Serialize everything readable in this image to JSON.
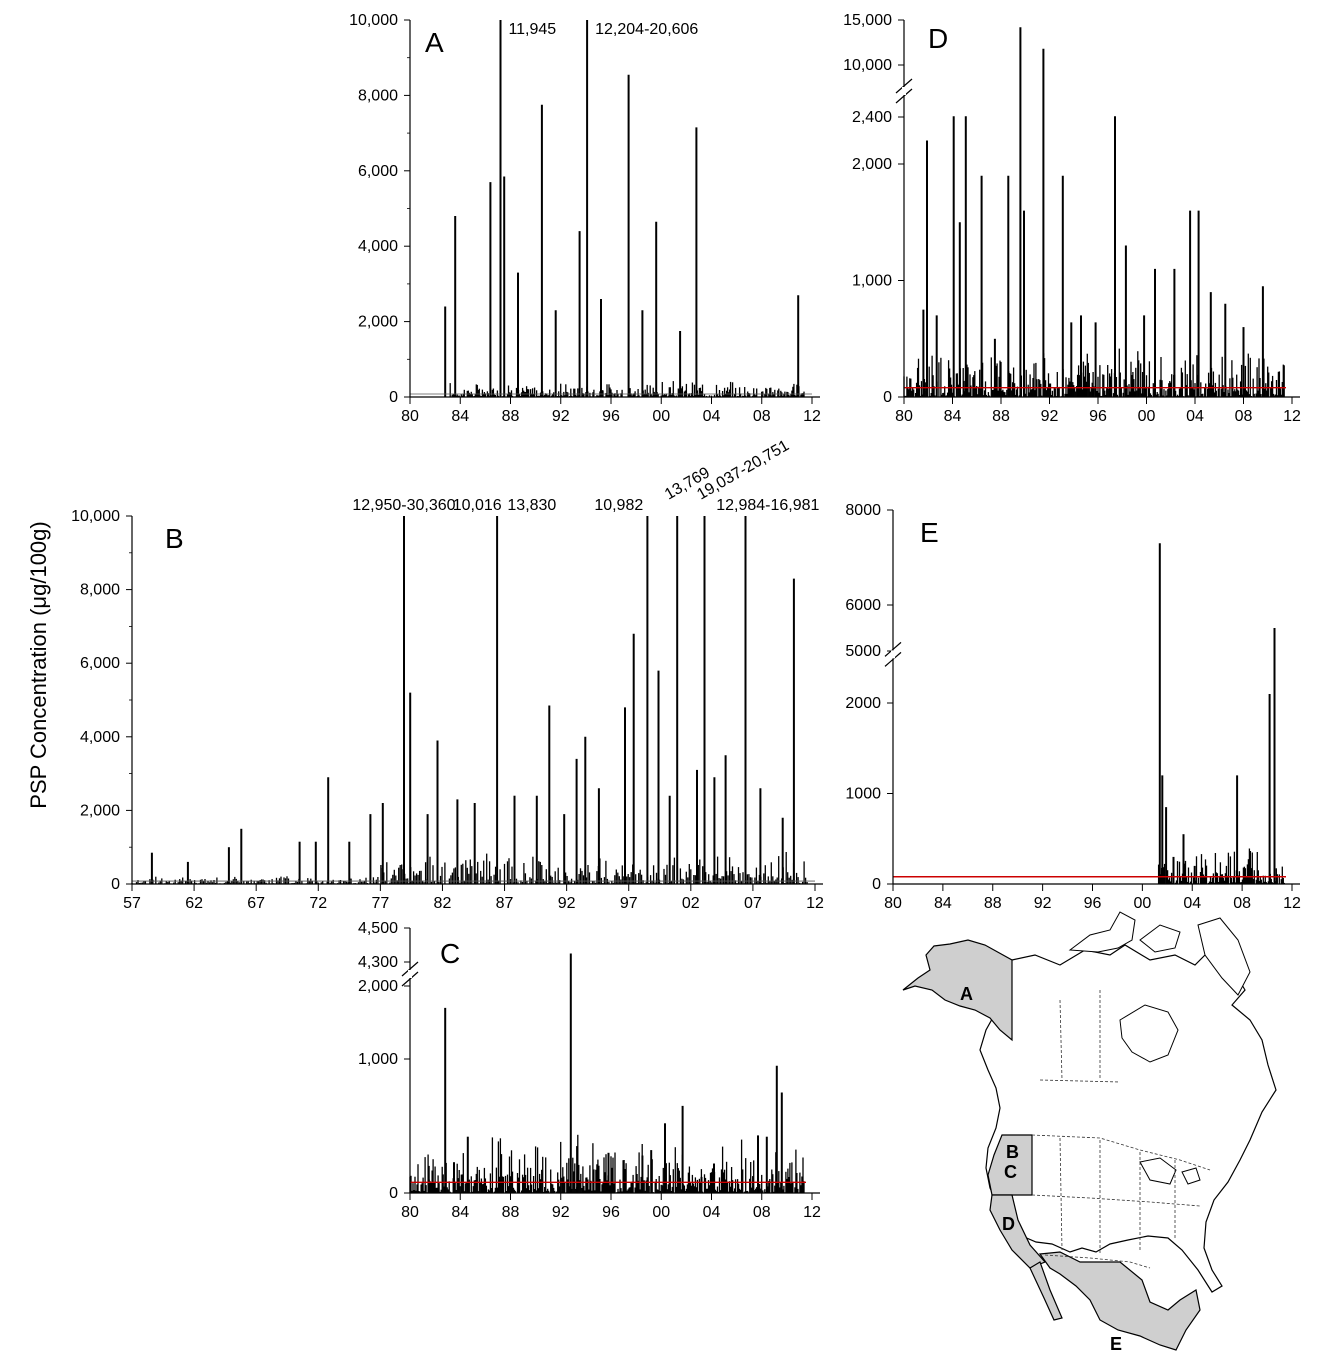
{
  "figure": {
    "ylabel": "PSP Concentration (μg/100g)",
    "threshold_color": "#cc0000",
    "map_region_color": "#cfcfcf"
  },
  "chart_data": [
    {
      "id": "A",
      "type": "bar",
      "panel_label": "A",
      "x_ticks": [
        "80",
        "84",
        "88",
        "92",
        "96",
        "00",
        "04",
        "08",
        "12"
      ],
      "y_ticks": [
        "0",
        "2,000",
        "4,000",
        "6,000",
        "8,000",
        "10,000"
      ],
      "x_range": [
        1980,
        2012
      ],
      "y_range": [
        0,
        10000
      ],
      "threshold": 80,
      "peaks": [
        [
          1982.8,
          2400
        ],
        [
          1983.6,
          4800
        ],
        [
          1986.4,
          5700
        ],
        [
          1987.2,
          10000
        ],
        [
          1987.5,
          5850
        ],
        [
          1988.6,
          3300
        ],
        [
          1990.5,
          7750
        ],
        [
          1991.6,
          2300
        ],
        [
          1993.5,
          4400
        ],
        [
          1994.1,
          10000
        ],
        [
          1995.2,
          2600
        ],
        [
          1997.4,
          8550
        ],
        [
          1998.5,
          2300
        ],
        [
          1999.6,
          4650
        ],
        [
          2001.5,
          1750
        ],
        [
          2002.8,
          7150
        ],
        [
          2010.9,
          2700
        ]
      ],
      "annotations": [
        {
          "x": 1987.2,
          "text": "11,945"
        },
        {
          "x": 1994.1,
          "text": "12,204-20,606"
        }
      ]
    },
    {
      "id": "B",
      "type": "bar",
      "panel_label": "B",
      "x_ticks": [
        "57",
        "62",
        "67",
        "72",
        "77",
        "82",
        "87",
        "92",
        "97",
        "02",
        "07",
        "12"
      ],
      "y_ticks": [
        "0",
        "2,000",
        "4,000",
        "6,000",
        "8,000",
        "10,000"
      ],
      "x_range": [
        1957,
        2012
      ],
      "y_range": [
        0,
        10000
      ],
      "threshold": 80,
      "peaks": [
        [
          1958.6,
          850
        ],
        [
          1961.5,
          600
        ],
        [
          1964.8,
          1000
        ],
        [
          1965.8,
          1500
        ],
        [
          1970.5,
          1150
        ],
        [
          1971.8,
          1150
        ],
        [
          1972.8,
          2900
        ],
        [
          1974.5,
          1150
        ],
        [
          1976.2,
          1900
        ],
        [
          1977.2,
          2200
        ],
        [
          1978.9,
          10000
        ],
        [
          1979.4,
          5200
        ],
        [
          1980.8,
          1900
        ],
        [
          1981.6,
          3900
        ],
        [
          1983.2,
          2300
        ],
        [
          1984.6,
          2200
        ],
        [
          1986.4,
          10000
        ],
        [
          1987.8,
          2400
        ],
        [
          1989.6,
          2400
        ],
        [
          1990.6,
          4850
        ],
        [
          1991.8,
          1900
        ],
        [
          1992.8,
          3400
        ],
        [
          1993.5,
          4000
        ],
        [
          1994.6,
          2600
        ],
        [
          1996.7,
          4800
        ],
        [
          1997.4,
          6800
        ],
        [
          1998.5,
          10000
        ],
        [
          1999.4,
          5800
        ],
        [
          2000.3,
          2400
        ],
        [
          2000.9,
          10000
        ],
        [
          2002.5,
          3100
        ],
        [
          2003.1,
          10000
        ],
        [
          2003.9,
          2900
        ],
        [
          2004.8,
          3500
        ],
        [
          2006.4,
          10000
        ],
        [
          2007.6,
          2600
        ],
        [
          2009.4,
          1800
        ],
        [
          2010.3,
          8300
        ]
      ],
      "annotations": [
        {
          "x": 1978.9,
          "text": "12,950-30,360"
        },
        {
          "x": 1984.8,
          "text": "10,016"
        },
        {
          "x": 1989.2,
          "text": "13,830"
        },
        {
          "x": 1996.2,
          "text": "10,982"
        },
        {
          "x": 2000.2,
          "text": "13,769",
          "rotated": true
        },
        {
          "x": 2002.8,
          "text": "19,037-20,751",
          "rotated": true
        },
        {
          "x": 2008.2,
          "text": "12,984-16,981"
        }
      ]
    },
    {
      "id": "C",
      "type": "bar",
      "panel_label": "C",
      "x_ticks": [
        "80",
        "84",
        "88",
        "92",
        "96",
        "00",
        "04",
        "08",
        "12"
      ],
      "y_ticks": [
        "0",
        "1,000",
        "2,000",
        "4,300",
        "4,500"
      ],
      "x_range": [
        1980,
        2012
      ],
      "y_range": [
        0,
        4500
      ],
      "axis_break": {
        "lower_max": 2000,
        "upper_min": 4300
      },
      "threshold": 80,
      "peaks": [
        [
          1981.5,
          100
        ],
        [
          1982.8,
          1700
        ],
        [
          1983.5,
          230
        ],
        [
          1984.6,
          420
        ],
        [
          1992.8,
          4350
        ],
        [
          1993.3,
          350
        ],
        [
          1995.8,
          300
        ],
        [
          1998.5,
          280
        ],
        [
          1999.2,
          320
        ],
        [
          2000.3,
          520
        ],
        [
          2001.7,
          650
        ],
        [
          2003.2,
          120
        ],
        [
          2004.2,
          220
        ],
        [
          2007.7,
          430
        ],
        [
          2008.4,
          420
        ],
        [
          2009.2,
          950
        ],
        [
          2009.6,
          750
        ]
      ]
    },
    {
      "id": "D",
      "type": "bar",
      "panel_label": "D",
      "x_ticks": [
        "80",
        "84",
        "88",
        "92",
        "96",
        "00",
        "04",
        "08",
        "12"
      ],
      "y_ticks": [
        "0",
        "1,000",
        "2,000",
        "2,400",
        "10,000",
        "15,000"
      ],
      "x_range": [
        1980,
        2012
      ],
      "y_range": [
        0,
        15000
      ],
      "axis_break": {
        "lower_max": 2400,
        "upper_min": 10000
      },
      "threshold": 80,
      "peaks": [
        [
          1981.6,
          750
        ],
        [
          1981.9,
          2200
        ],
        [
          1982.7,
          700
        ],
        [
          1984.1,
          2500
        ],
        [
          1984.6,
          1500
        ],
        [
          1985.1,
          2500
        ],
        [
          1986.4,
          1900
        ],
        [
          1987.5,
          500
        ],
        [
          1988.6,
          1900
        ],
        [
          1989.6,
          14200
        ],
        [
          1989.9,
          1600
        ],
        [
          1991.5,
          11800
        ],
        [
          1993.1,
          1900
        ],
        [
          1993.8,
          640
        ],
        [
          1994.6,
          700
        ],
        [
          1995.8,
          640
        ],
        [
          1997.4,
          2500
        ],
        [
          1998.3,
          1300
        ],
        [
          1999.8,
          700
        ],
        [
          2000.7,
          1100
        ],
        [
          2002.3,
          1100
        ],
        [
          2003.6,
          1600
        ],
        [
          2004.3,
          1600
        ],
        [
          2005.3,
          900
        ],
        [
          2006.5,
          800
        ],
        [
          2008.0,
          600
        ],
        [
          2009.6,
          950
        ]
      ]
    },
    {
      "id": "E",
      "type": "bar",
      "panel_label": "E",
      "x_ticks": [
        "80",
        "84",
        "88",
        "92",
        "96",
        "00",
        "04",
        "08",
        "12"
      ],
      "y_ticks": [
        "0",
        "1000",
        "2000",
        "5000",
        "6000",
        "8000"
      ],
      "x_range": [
        1980,
        2012
      ],
      "y_range": [
        0,
        8000
      ],
      "axis_break": {
        "lower_max": 2500,
        "upper_min": 5000
      },
      "threshold": 80,
      "peaks": [
        [
          2001.4,
          7300
        ],
        [
          2001.6,
          1200
        ],
        [
          2001.9,
          850
        ],
        [
          2002.5,
          300
        ],
        [
          2003.3,
          550
        ],
        [
          2004.2,
          200
        ],
        [
          2007.6,
          1200
        ],
        [
          2010.2,
          2100
        ],
        [
          2010.6,
          5500
        ]
      ]
    }
  ],
  "map": {
    "region_labels": [
      "A",
      "B",
      "C",
      "D",
      "E"
    ]
  }
}
